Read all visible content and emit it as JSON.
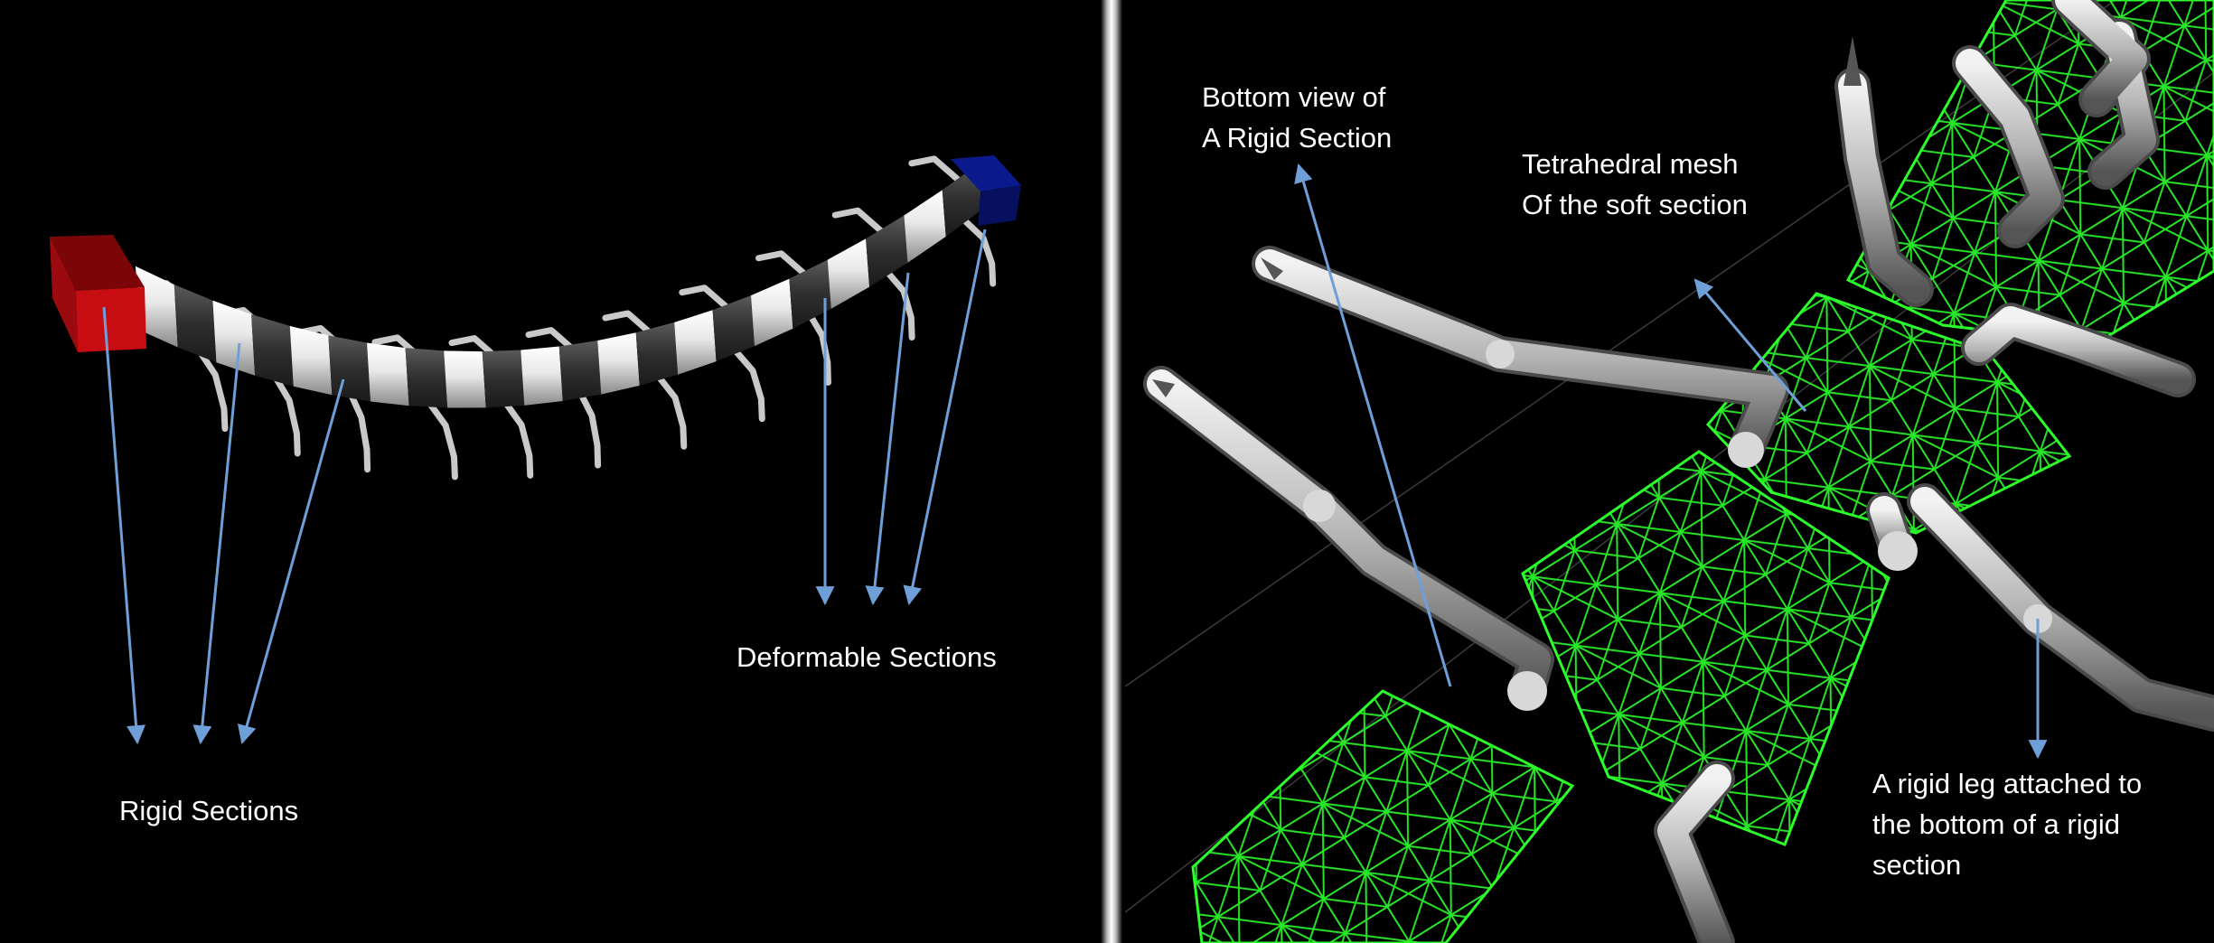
{
  "annotations": {
    "left_panel": {
      "rigid_sections": "Rigid Sections",
      "deformable_sections": "Deformable Sections"
    },
    "right_panel": {
      "bottom_view_line1": "Bottom view of",
      "bottom_view_line2": "A Rigid Section",
      "tet_mesh_line1": "Tetrahedral mesh",
      "tet_mesh_line2": "Of the soft section",
      "rigid_leg_line1": "A rigid leg attached to",
      "rigid_leg_line2": "the bottom of a rigid",
      "rigid_leg_line3": "section"
    }
  },
  "colors": {
    "background": "#000000",
    "divider": "#f2f2f2",
    "arrow": "#6f9fd8",
    "head_red": "#c80d12",
    "tail_blue": "#0a1a8c",
    "rigid_segment": "#2f2f2f",
    "deformable_segment": "#d9d9d9",
    "mesh_green": "#33ff33",
    "leg_grey": "#b9b9b9"
  }
}
